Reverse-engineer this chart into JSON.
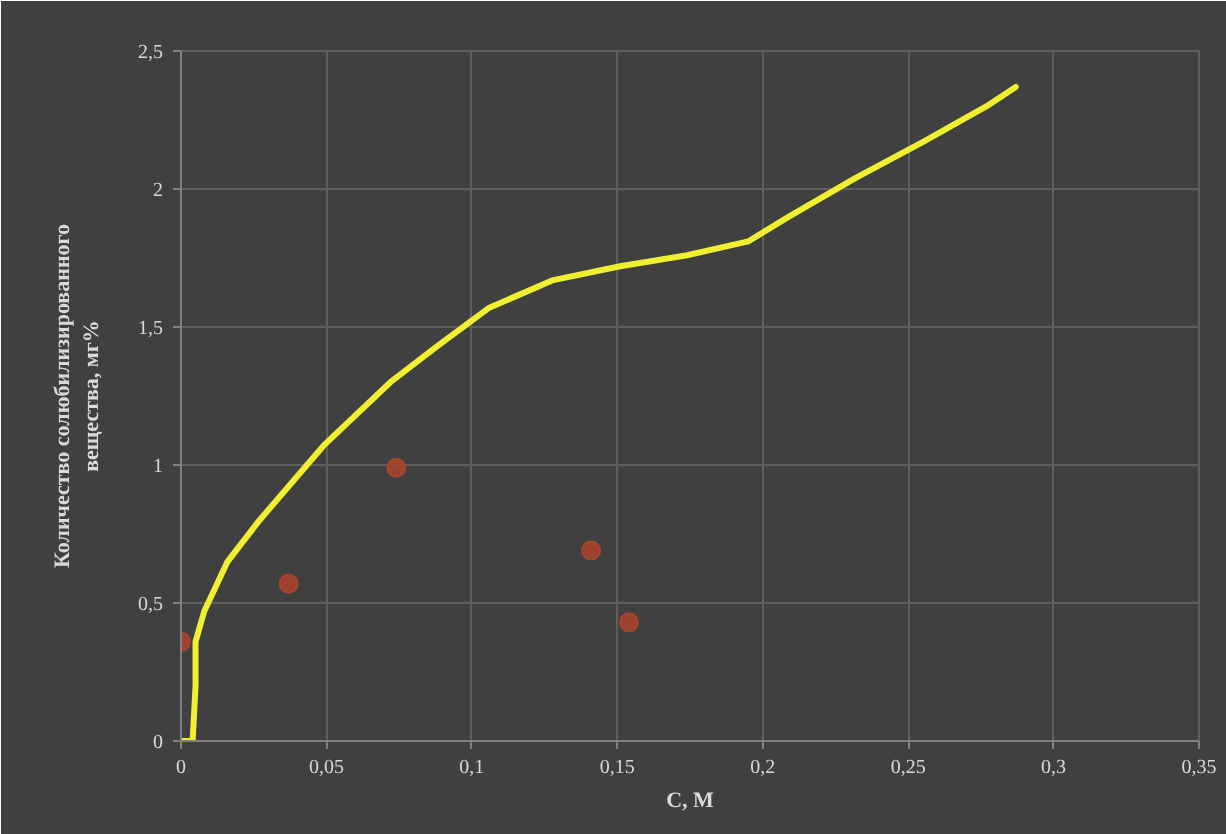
{
  "chart_data": {
    "type": "line",
    "xlabel": "C, M",
    "ylabel": "Количество солюбилизированного вещества, мг%",
    "xlim": [
      0,
      0.35
    ],
    "ylim": [
      0,
      2.5
    ],
    "xticks": [
      0,
      {
        "value": 0.05,
        "label": "0,05"
      },
      {
        "value": 0.1,
        "label": "0,1"
      },
      {
        "value": 0.15,
        "label": "0,15"
      },
      {
        "value": 0.2,
        "label": "0,2"
      },
      {
        "value": 0.25,
        "label": "0,25"
      },
      {
        "value": 0.3,
        "label": "0,3"
      },
      {
        "value": 0.35,
        "label": "0,35"
      }
    ],
    "yticks": [
      0,
      {
        "value": 0.5,
        "label": "0,5"
      },
      1,
      {
        "value": 1.5,
        "label": "1,5"
      },
      2,
      {
        "value": 2.5,
        "label": "2,5"
      }
    ],
    "grid": true,
    "series": [
      {
        "color": "#f0f030",
        "marker": "none",
        "line_style": "solid",
        "x": [
          0,
          0.004,
          0.005,
          0.005,
          0.008,
          0.016,
          0.027,
          0.049,
          0.072,
          0.088,
          0.106,
          0.128,
          0.151,
          0.174,
          0.195,
          0.209,
          0.232,
          0.255,
          0.277,
          0.287
        ],
        "values": [
          0,
          0,
          0.2,
          0.36,
          0.47,
          0.65,
          0.8,
          1.07,
          1.3,
          1.43,
          1.57,
          1.67,
          1.72,
          1.76,
          1.81,
          1.9,
          2.04,
          2.17,
          2.3,
          2.37
        ]
      },
      {
        "type": "scatter",
        "color": "#a8432f",
        "marker": "circle",
        "x": [
          0,
          0.037,
          0.074,
          0.141,
          0.154
        ],
        "values": [
          0.36,
          0.57,
          0.99,
          0.69,
          0.43
        ]
      }
    ]
  }
}
